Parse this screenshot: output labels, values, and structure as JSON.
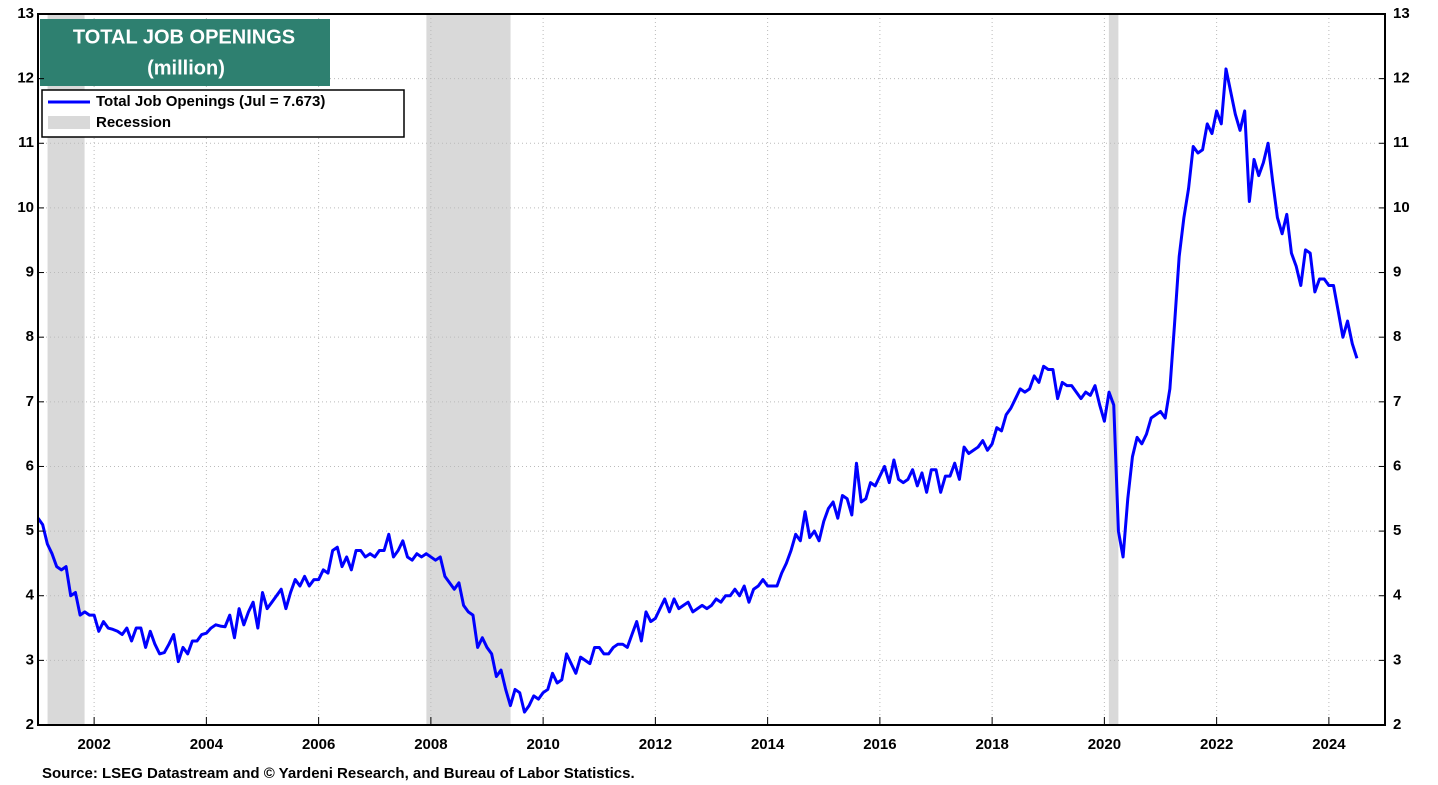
{
  "chart_data": {
    "type": "line",
    "title": "TOTAL JOB OPENINGS",
    "subtitle": "(million)",
    "source": "Source: LSEG Datastream and © Yardeni Research, and Bureau of Labor Statistics.",
    "legend_recession": "Recession",
    "recessions": [
      [
        2001.17,
        2001.83
      ],
      [
        2007.92,
        2009.42
      ],
      [
        2020.08,
        2020.25
      ]
    ],
    "recession_color": "#d9d9d9",
    "xlim": [
      2001,
      2025
    ],
    "xticks": [
      2002,
      2004,
      2006,
      2008,
      2010,
      2012,
      2014,
      2016,
      2018,
      2020,
      2022,
      2024
    ],
    "ylim": [
      2,
      13
    ],
    "yticks": [
      2,
      3,
      4,
      5,
      6,
      7,
      8,
      9,
      10,
      11,
      12,
      13
    ],
    "legend": "upper-left",
    "x": [
      2001.0,
      2001.083,
      2001.167,
      2001.25,
      2001.333,
      2001.417,
      2001.5,
      2001.583,
      2001.667,
      2001.75,
      2001.833,
      2001.917,
      2002.0,
      2002.083,
      2002.167,
      2002.25,
      2002.333,
      2002.417,
      2002.5,
      2002.583,
      2002.667,
      2002.75,
      2002.833,
      2002.917,
      2003.0,
      2003.083,
      2003.167,
      2003.25,
      2003.333,
      2003.417,
      2003.5,
      2003.583,
      2003.667,
      2003.75,
      2003.833,
      2003.917,
      2004.0,
      2004.083,
      2004.167,
      2004.25,
      2004.333,
      2004.417,
      2004.5,
      2004.583,
      2004.667,
      2004.75,
      2004.833,
      2004.917,
      2005.0,
      2005.083,
      2005.167,
      2005.25,
      2005.333,
      2005.417,
      2005.5,
      2005.583,
      2005.667,
      2005.75,
      2005.833,
      2005.917,
      2006.0,
      2006.083,
      2006.167,
      2006.25,
      2006.333,
      2006.417,
      2006.5,
      2006.583,
      2006.667,
      2006.75,
      2006.833,
      2006.917,
      2007.0,
      2007.083,
      2007.167,
      2007.25,
      2007.333,
      2007.417,
      2007.5,
      2007.583,
      2007.667,
      2007.75,
      2007.833,
      2007.917,
      2008.0,
      2008.083,
      2008.167,
      2008.25,
      2008.333,
      2008.417,
      2008.5,
      2008.583,
      2008.667,
      2008.75,
      2008.833,
      2008.917,
      2009.0,
      2009.083,
      2009.167,
      2009.25,
      2009.333,
      2009.417,
      2009.5,
      2009.583,
      2009.667,
      2009.75,
      2009.833,
      2009.917,
      2010.0,
      2010.083,
      2010.167,
      2010.25,
      2010.333,
      2010.417,
      2010.5,
      2010.583,
      2010.667,
      2010.75,
      2010.833,
      2010.917,
      2011.0,
      2011.083,
      2011.167,
      2011.25,
      2011.333,
      2011.417,
      2011.5,
      2011.583,
      2011.667,
      2011.75,
      2011.833,
      2011.917,
      2012.0,
      2012.083,
      2012.167,
      2012.25,
      2012.333,
      2012.417,
      2012.5,
      2012.583,
      2012.667,
      2012.75,
      2012.833,
      2012.917,
      2013.0,
      2013.083,
      2013.167,
      2013.25,
      2013.333,
      2013.417,
      2013.5,
      2013.583,
      2013.667,
      2013.75,
      2013.833,
      2013.917,
      2014.0,
      2014.083,
      2014.167,
      2014.25,
      2014.333,
      2014.417,
      2014.5,
      2014.583,
      2014.667,
      2014.75,
      2014.833,
      2014.917,
      2015.0,
      2015.083,
      2015.167,
      2015.25,
      2015.333,
      2015.417,
      2015.5,
      2015.583,
      2015.667,
      2015.75,
      2015.833,
      2015.917,
      2016.0,
      2016.083,
      2016.167,
      2016.25,
      2016.333,
      2016.417,
      2016.5,
      2016.583,
      2016.667,
      2016.75,
      2016.833,
      2016.917,
      2017.0,
      2017.083,
      2017.167,
      2017.25,
      2017.333,
      2017.417,
      2017.5,
      2017.583,
      2017.667,
      2017.75,
      2017.833,
      2017.917,
      2018.0,
      2018.083,
      2018.167,
      2018.25,
      2018.333,
      2018.417,
      2018.5,
      2018.583,
      2018.667,
      2018.75,
      2018.833,
      2018.917,
      2019.0,
      2019.083,
      2019.167,
      2019.25,
      2019.333,
      2019.417,
      2019.5,
      2019.583,
      2019.667,
      2019.75,
      2019.833,
      2019.917,
      2020.0,
      2020.083,
      2020.167,
      2020.25,
      2020.333,
      2020.417,
      2020.5,
      2020.583,
      2020.667,
      2020.75,
      2020.833,
      2020.917,
      2021.0,
      2021.083,
      2021.167,
      2021.25,
      2021.333,
      2021.417,
      2021.5,
      2021.583,
      2021.667,
      2021.75,
      2021.833,
      2021.917,
      2022.0,
      2022.083,
      2022.167,
      2022.25,
      2022.333,
      2022.417,
      2022.5,
      2022.583,
      2022.667,
      2022.75,
      2022.833,
      2022.917,
      2023.0,
      2023.083,
      2023.167,
      2023.25,
      2023.333,
      2023.417,
      2023.5,
      2023.583,
      2023.667,
      2023.75,
      2023.833,
      2023.917,
      2024.0,
      2024.083,
      2024.167,
      2024.25,
      2024.333,
      2024.417,
      2024.5
    ],
    "series": [
      {
        "name": "Total Job Openings (Jul = 7.673)",
        "color": "#0000ff",
        "values": [
          5.2,
          5.1,
          4.8,
          4.65,
          4.45,
          4.4,
          4.45,
          4.0,
          4.05,
          3.7,
          3.75,
          3.7,
          3.7,
          3.45,
          3.6,
          3.5,
          3.48,
          3.45,
          3.4,
          3.5,
          3.3,
          3.5,
          3.5,
          3.2,
          3.45,
          3.25,
          3.1,
          3.12,
          3.25,
          3.4,
          2.98,
          3.2,
          3.1,
          3.3,
          3.3,
          3.4,
          3.42,
          3.5,
          3.55,
          3.53,
          3.52,
          3.7,
          3.35,
          3.8,
          3.55,
          3.75,
          3.9,
          3.5,
          4.05,
          3.8,
          3.9,
          4.0,
          4.1,
          3.8,
          4.05,
          4.25,
          4.15,
          4.3,
          4.15,
          4.25,
          4.25,
          4.4,
          4.35,
          4.7,
          4.75,
          4.45,
          4.6,
          4.4,
          4.7,
          4.7,
          4.6,
          4.65,
          4.6,
          4.7,
          4.7,
          4.95,
          4.6,
          4.7,
          4.85,
          4.6,
          4.55,
          4.65,
          4.6,
          4.65,
          4.6,
          4.55,
          4.6,
          4.3,
          4.2,
          4.1,
          4.2,
          3.85,
          3.75,
          3.7,
          3.2,
          3.35,
          3.2,
          3.1,
          2.75,
          2.85,
          2.55,
          2.3,
          2.55,
          2.5,
          2.2,
          2.3,
          2.45,
          2.4,
          2.5,
          2.55,
          2.8,
          2.65,
          2.7,
          3.1,
          2.95,
          2.8,
          3.05,
          3.0,
          2.95,
          3.2,
          3.2,
          3.1,
          3.1,
          3.2,
          3.25,
          3.25,
          3.2,
          3.4,
          3.6,
          3.3,
          3.75,
          3.6,
          3.65,
          3.8,
          3.95,
          3.75,
          3.95,
          3.8,
          3.85,
          3.9,
          3.75,
          3.8,
          3.85,
          3.8,
          3.85,
          3.95,
          3.9,
          4.0,
          4.0,
          4.1,
          4.0,
          4.15,
          3.9,
          4.1,
          4.15,
          4.25,
          4.15,
          4.15,
          4.15,
          4.35,
          4.5,
          4.7,
          4.95,
          4.85,
          5.3,
          4.9,
          5.0,
          4.85,
          5.15,
          5.35,
          5.45,
          5.2,
          5.55,
          5.5,
          5.25,
          6.05,
          5.45,
          5.5,
          5.75,
          5.7,
          5.85,
          6.0,
          5.75,
          6.1,
          5.8,
          5.75,
          5.8,
          5.95,
          5.7,
          5.9,
          5.6,
          5.95,
          5.95,
          5.6,
          5.85,
          5.85,
          6.05,
          5.8,
          6.3,
          6.2,
          6.25,
          6.3,
          6.4,
          6.25,
          6.35,
          6.6,
          6.55,
          6.8,
          6.9,
          7.05,
          7.2,
          7.15,
          7.2,
          7.4,
          7.3,
          7.55,
          7.5,
          7.5,
          7.05,
          7.3,
          7.25,
          7.25,
          7.15,
          7.05,
          7.15,
          7.1,
          7.25,
          6.95,
          6.7,
          7.15,
          6.95,
          5.0,
          4.6,
          5.5,
          6.15,
          6.45,
          6.35,
          6.5,
          6.75,
          6.8,
          6.85,
          6.75,
          7.2,
          8.2,
          9.25,
          9.85,
          10.3,
          10.95,
          10.85,
          10.9,
          11.3,
          11.15,
          11.5,
          11.3,
          12.15,
          11.8,
          11.45,
          11.2,
          11.5,
          10.1,
          10.75,
          10.5,
          10.7,
          11.0,
          10.4,
          9.85,
          9.6,
          9.9,
          9.3,
          9.1,
          8.8,
          9.35,
          9.3,
          8.7,
          8.9,
          8.9,
          8.8,
          8.8,
          8.4,
          8.0,
          8.25,
          7.9,
          7.673
        ]
      }
    ]
  }
}
